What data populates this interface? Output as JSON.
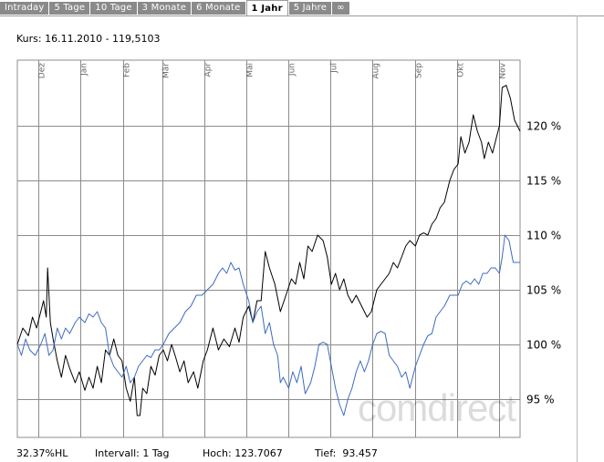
{
  "tabs": [
    {
      "label": "Intraday",
      "active": false
    },
    {
      "label": "5 Tage",
      "active": false
    },
    {
      "label": "10 Tage",
      "active": false
    },
    {
      "label": "3 Monate",
      "active": false
    },
    {
      "label": "6 Monate",
      "active": false
    },
    {
      "label": "1 Jahr",
      "active": true
    },
    {
      "label": "5 Jahre",
      "active": false
    },
    {
      "label": "∞",
      "active": false
    }
  ],
  "kurs_label": "Kurs: 16.11.2010 - 119,5103",
  "watermark": "comdirect",
  "footer": {
    "hl": "32.37%HL",
    "intervall": "Intervall: 1 Tag",
    "hoch": "Hoch: 123.7067",
    "tief": "Tief:  93.457"
  },
  "colors": {
    "primary_series": "#000000",
    "benchmark_series": "#3d6bbf",
    "grid": "#8c8c8c",
    "tab_bg": "#8a8a8a"
  },
  "chart_data": {
    "type": "line",
    "title": "",
    "xlabel": "",
    "ylabel": "",
    "x_range": [
      "2009-11-16",
      "2010-11-16"
    ],
    "ylim": [
      91.5,
      126
    ],
    "y_ticks": [
      95,
      100,
      105,
      110,
      115,
      120
    ],
    "y_tick_labels": [
      "95 %",
      "100 %",
      "105 %",
      "110 %",
      "115 %",
      "120 %"
    ],
    "x_ticks": [
      {
        "label": "Dez",
        "date": "2009-12-01"
      },
      {
        "label": "Jan",
        "date": "2010-01-01"
      },
      {
        "label": "Feb",
        "date": "2010-02-01"
      },
      {
        "label": "Mär",
        "date": "2010-03-01"
      },
      {
        "label": "Apr",
        "date": "2010-04-01"
      },
      {
        "label": "Mai",
        "date": "2010-05-01"
      },
      {
        "label": "Jun",
        "date": "2010-06-01"
      },
      {
        "label": "Jul",
        "date": "2010-07-01"
      },
      {
        "label": "Aug",
        "date": "2010-08-01"
      },
      {
        "label": "Sep",
        "date": "2010-09-01"
      },
      {
        "label": "Okt",
        "date": "2010-10-01"
      },
      {
        "label": "Nov",
        "date": "2010-11-01"
      }
    ],
    "grid": true,
    "series": [
      {
        "color": "#000000",
        "points": [
          [
            "2009-11-16",
            100
          ],
          [
            "2009-11-20",
            101.5
          ],
          [
            "2009-11-24",
            100.8
          ],
          [
            "2009-11-27",
            102.5
          ],
          [
            "2009-11-30",
            101.5
          ],
          [
            "2009-12-03",
            103
          ],
          [
            "2009-12-05",
            104
          ],
          [
            "2009-12-07",
            102.5
          ],
          [
            "2009-12-08",
            107
          ],
          [
            "2009-12-10",
            102
          ],
          [
            "2009-12-12",
            100.5
          ],
          [
            "2009-12-15",
            98.5
          ],
          [
            "2009-12-18",
            97
          ],
          [
            "2009-12-21",
            99
          ],
          [
            "2009-12-24",
            97.8
          ],
          [
            "2009-12-28",
            96.5
          ],
          [
            "2009-12-31",
            97.5
          ],
          [
            "2010-01-04",
            95.8
          ],
          [
            "2010-01-07",
            97
          ],
          [
            "2010-01-10",
            96
          ],
          [
            "2010-01-13",
            98
          ],
          [
            "2010-01-16",
            96.5
          ],
          [
            "2010-01-19",
            99.5
          ],
          [
            "2010-01-22",
            99
          ],
          [
            "2010-01-25",
            100.5
          ],
          [
            "2010-01-28",
            99
          ],
          [
            "2010-01-31",
            98.5
          ],
          [
            "2010-02-03",
            96
          ],
          [
            "2010-02-06",
            94.8
          ],
          [
            "2010-02-09",
            97
          ],
          [
            "2010-02-11",
            93.5
          ],
          [
            "2010-02-13",
            93.5
          ],
          [
            "2010-02-15",
            96
          ],
          [
            "2010-02-18",
            95.5
          ],
          [
            "2010-02-21",
            98
          ],
          [
            "2010-02-24",
            97.2
          ],
          [
            "2010-02-27",
            99
          ],
          [
            "2010-03-02",
            99.5
          ],
          [
            "2010-03-05",
            98.5
          ],
          [
            "2010-03-08",
            100
          ],
          [
            "2010-03-11",
            98.8
          ],
          [
            "2010-03-14",
            97.5
          ],
          [
            "2010-03-17",
            98.5
          ],
          [
            "2010-03-20",
            96.5
          ],
          [
            "2010-03-24",
            97.5
          ],
          [
            "2010-03-27",
            96
          ],
          [
            "2010-03-31",
            98.5
          ],
          [
            "2010-04-03",
            99.5
          ],
          [
            "2010-04-07",
            101.5
          ],
          [
            "2010-04-11",
            99.5
          ],
          [
            "2010-04-15",
            100.5
          ],
          [
            "2010-04-19",
            99.8
          ],
          [
            "2010-04-23",
            101.5
          ],
          [
            "2010-04-26",
            100.2
          ],
          [
            "2010-04-29",
            102.5
          ],
          [
            "2010-05-03",
            103.5
          ],
          [
            "2010-05-06",
            102
          ],
          [
            "2010-05-09",
            104
          ],
          [
            "2010-05-12",
            104
          ],
          [
            "2010-05-15",
            108.5
          ],
          [
            "2010-05-18",
            107
          ],
          [
            "2010-05-22",
            105.5
          ],
          [
            "2010-05-26",
            103
          ],
          [
            "2010-05-30",
            104.5
          ],
          [
            "2010-06-03",
            106
          ],
          [
            "2010-06-06",
            105.5
          ],
          [
            "2010-06-09",
            107.5
          ],
          [
            "2010-06-12",
            106
          ],
          [
            "2010-06-15",
            109
          ],
          [
            "2010-06-18",
            108.5
          ],
          [
            "2010-06-22",
            110
          ],
          [
            "2010-06-26",
            109.5
          ],
          [
            "2010-06-29",
            108
          ],
          [
            "2010-07-02",
            105.5
          ],
          [
            "2010-07-05",
            106.5
          ],
          [
            "2010-07-08",
            105
          ],
          [
            "2010-07-11",
            106
          ],
          [
            "2010-07-14",
            104.5
          ],
          [
            "2010-07-17",
            103.8
          ],
          [
            "2010-07-20",
            104.5
          ],
          [
            "2010-07-24",
            103.5
          ],
          [
            "2010-07-28",
            102.5
          ],
          [
            "2010-07-31",
            103
          ],
          [
            "2010-08-04",
            105
          ],
          [
            "2010-08-07",
            105.5
          ],
          [
            "2010-08-10",
            106
          ],
          [
            "2010-08-13",
            106.5
          ],
          [
            "2010-08-16",
            107.5
          ],
          [
            "2010-08-19",
            107
          ],
          [
            "2010-08-22",
            108
          ],
          [
            "2010-08-25",
            109
          ],
          [
            "2010-08-28",
            109.5
          ],
          [
            "2010-09-01",
            109
          ],
          [
            "2010-09-04",
            110
          ],
          [
            "2010-09-07",
            110.2
          ],
          [
            "2010-09-10",
            110
          ],
          [
            "2010-09-13",
            111
          ],
          [
            "2010-09-16",
            111.5
          ],
          [
            "2010-09-19",
            112.5
          ],
          [
            "2010-09-22",
            113
          ],
          [
            "2010-09-26",
            115
          ],
          [
            "2010-09-29",
            116
          ],
          [
            "2010-10-02",
            116.5
          ],
          [
            "2010-10-04",
            119
          ],
          [
            "2010-10-07",
            117.5
          ],
          [
            "2010-10-10",
            118.5
          ],
          [
            "2010-10-13",
            121
          ],
          [
            "2010-10-16",
            119.5
          ],
          [
            "2010-10-19",
            118.5
          ],
          [
            "2010-10-21",
            117
          ],
          [
            "2010-10-24",
            118.5
          ],
          [
            "2010-10-27",
            117.5
          ],
          [
            "2010-10-30",
            119
          ],
          [
            "2010-11-01",
            120
          ],
          [
            "2010-11-03",
            123.5
          ],
          [
            "2010-11-06",
            123.7
          ],
          [
            "2010-11-09",
            122.5
          ],
          [
            "2010-11-12",
            120.5
          ],
          [
            "2010-11-16",
            119.5
          ]
        ]
      },
      {
        "color": "#3d6bbf",
        "points": [
          [
            "2009-11-16",
            100
          ],
          [
            "2009-11-19",
            99
          ],
          [
            "2009-11-22",
            100.5
          ],
          [
            "2009-11-25",
            99.5
          ],
          [
            "2009-11-29",
            99
          ],
          [
            "2009-12-03",
            100
          ],
          [
            "2009-12-06",
            101
          ],
          [
            "2009-12-09",
            99
          ],
          [
            "2009-12-12",
            99.5
          ],
          [
            "2009-12-15",
            101.5
          ],
          [
            "2009-12-18",
            100.5
          ],
          [
            "2009-12-21",
            101.5
          ],
          [
            "2009-12-24",
            101
          ],
          [
            "2009-12-28",
            102
          ],
          [
            "2009-12-31",
            102.5
          ],
          [
            "2010-01-04",
            102
          ],
          [
            "2010-01-07",
            102.8
          ],
          [
            "2010-01-10",
            102.5
          ],
          [
            "2010-01-13",
            103
          ],
          [
            "2010-01-16",
            102
          ],
          [
            "2010-01-19",
            101.5
          ],
          [
            "2010-01-22",
            99
          ],
          [
            "2010-01-25",
            98
          ],
          [
            "2010-01-28",
            97.5
          ],
          [
            "2010-01-31",
            97
          ],
          [
            "2010-02-03",
            98
          ],
          [
            "2010-02-06",
            96.5
          ],
          [
            "2010-02-09",
            97
          ],
          [
            "2010-02-12",
            98
          ],
          [
            "2010-02-15",
            98.5
          ],
          [
            "2010-02-18",
            99
          ],
          [
            "2010-02-21",
            98.8
          ],
          [
            "2010-02-24",
            99.5
          ],
          [
            "2010-02-27",
            99.5
          ],
          [
            "2010-03-02",
            100
          ],
          [
            "2010-03-06",
            101
          ],
          [
            "2010-03-10",
            101.5
          ],
          [
            "2010-03-14",
            102
          ],
          [
            "2010-03-18",
            103
          ],
          [
            "2010-03-22",
            103.5
          ],
          [
            "2010-03-26",
            104.5
          ],
          [
            "2010-03-30",
            104.5
          ],
          [
            "2010-04-03",
            105
          ],
          [
            "2010-04-07",
            105.5
          ],
          [
            "2010-04-11",
            106.5
          ],
          [
            "2010-04-14",
            107
          ],
          [
            "2010-04-17",
            106.5
          ],
          [
            "2010-04-20",
            107.5
          ],
          [
            "2010-04-23",
            106.8
          ],
          [
            "2010-04-26",
            107
          ],
          [
            "2010-04-29",
            105.5
          ],
          [
            "2010-05-03",
            104
          ],
          [
            "2010-05-06",
            102
          ],
          [
            "2010-05-09",
            103
          ],
          [
            "2010-05-12",
            103.5
          ],
          [
            "2010-05-15",
            101
          ],
          [
            "2010-05-18",
            102
          ],
          [
            "2010-05-21",
            100
          ],
          [
            "2010-05-24",
            99
          ],
          [
            "2010-05-26",
            96.5
          ],
          [
            "2010-05-28",
            97
          ],
          [
            "2010-06-01",
            96
          ],
          [
            "2010-06-04",
            97.5
          ],
          [
            "2010-06-07",
            96.5
          ],
          [
            "2010-06-10",
            98
          ],
          [
            "2010-06-13",
            95.5
          ],
          [
            "2010-06-17",
            96.5
          ],
          [
            "2010-06-20",
            98
          ],
          [
            "2010-06-23",
            100
          ],
          [
            "2010-06-26",
            100.2
          ],
          [
            "2010-06-29",
            100
          ],
          [
            "2010-07-02",
            98
          ],
          [
            "2010-07-05",
            96
          ],
          [
            "2010-07-08",
            94.5
          ],
          [
            "2010-07-11",
            93.5
          ],
          [
            "2010-07-14",
            95
          ],
          [
            "2010-07-17",
            96
          ],
          [
            "2010-07-20",
            97.5
          ],
          [
            "2010-07-23",
            98.5
          ],
          [
            "2010-07-26",
            97.5
          ],
          [
            "2010-07-29",
            98.5
          ],
          [
            "2010-08-01",
            100
          ],
          [
            "2010-08-04",
            101
          ],
          [
            "2010-08-07",
            101.2
          ],
          [
            "2010-08-10",
            101
          ],
          [
            "2010-08-13",
            99
          ],
          [
            "2010-08-16",
            98.5
          ],
          [
            "2010-08-19",
            98
          ],
          [
            "2010-08-22",
            97
          ],
          [
            "2010-08-25",
            97.5
          ],
          [
            "2010-08-28",
            96
          ],
          [
            "2010-09-01",
            98
          ],
          [
            "2010-09-04",
            99
          ],
          [
            "2010-09-07",
            100
          ],
          [
            "2010-09-10",
            100.8
          ],
          [
            "2010-09-13",
            101
          ],
          [
            "2010-09-16",
            102.5
          ],
          [
            "2010-09-19",
            103
          ],
          [
            "2010-09-22",
            103.5
          ],
          [
            "2010-09-26",
            104.5
          ],
          [
            "2010-09-29",
            104.5
          ],
          [
            "2010-10-02",
            104.5
          ],
          [
            "2010-10-05",
            105.5
          ],
          [
            "2010-10-08",
            105.8
          ],
          [
            "2010-10-11",
            105.5
          ],
          [
            "2010-10-14",
            106
          ],
          [
            "2010-10-17",
            105.5
          ],
          [
            "2010-10-20",
            106.5
          ],
          [
            "2010-10-23",
            106.5
          ],
          [
            "2010-10-26",
            107
          ],
          [
            "2010-10-29",
            107
          ],
          [
            "2010-11-01",
            106.5
          ],
          [
            "2010-11-03",
            108
          ],
          [
            "2010-11-05",
            110
          ],
          [
            "2010-11-08",
            109.5
          ],
          [
            "2010-11-11",
            107.5
          ],
          [
            "2010-11-16",
            107.5
          ]
        ]
      }
    ]
  }
}
